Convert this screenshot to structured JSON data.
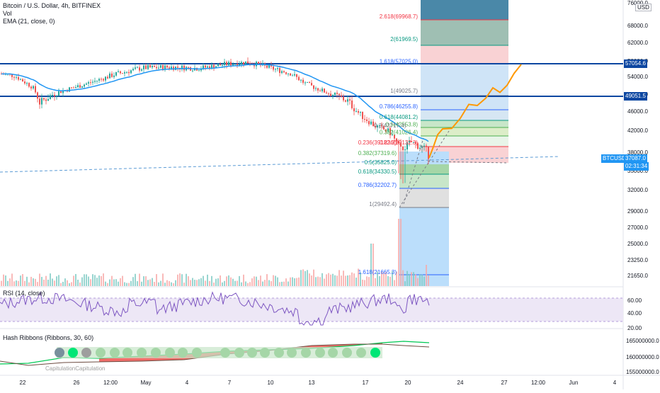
{
  "header": {
    "symbol_line": "Bitcoin / U.S. Dollar, 4h, BITFINEX",
    "vol_label": "Vol",
    "ema_label": "EMA (21, close, 0)"
  },
  "price_axis": {
    "currency": "USD",
    "ticks": [
      "76000.0",
      "68000.0",
      "62000.0",
      "58000.0",
      "54000.0",
      "49000.0",
      "46000.0",
      "42000.0",
      "38000.0",
      "35000.0",
      "32000.0",
      "29000.0",
      "27000.0",
      "25000.0",
      "23250.0",
      "21650.0"
    ],
    "resistance_1": "57054.6",
    "resistance_2": "49051.5",
    "current_symbol": "BTCUSD",
    "current_price": "37087.0",
    "countdown": "02:31:34"
  },
  "fib_extension": [
    {
      "label": "2.618(69968.7)",
      "price": 69968.7,
      "color": "#f23645"
    },
    {
      "label": "2(61969.5)",
      "price": 61969.5,
      "color": "#089981"
    },
    {
      "label": "1.618(57025.0)",
      "price": 57025.0,
      "color": "#2962ff"
    },
    {
      "label": "1(49025.7)",
      "price": 49025.7,
      "color": "#787b86"
    },
    {
      "label": "0.786(46255.8)",
      "price": 46255.8,
      "color": "#2962ff"
    },
    {
      "label": "0.618(44081.2)",
      "price": 44081.2,
      "color": "#089981"
    },
    {
      "label": "0.5(42553.8)",
      "price": 42553.8,
      "color": "#4caf50"
    },
    {
      "label": "0.382(41026.4)",
      "price": 41026.4,
      "color": "#4caf50"
    },
    {
      "label": "0.236(39132.3)",
      "price": 39132.3,
      "color": "#f23645"
    }
  ],
  "fib_retracement": [
    {
      "label": "0.236(39182.3)",
      "price": 39182.3,
      "color": "#f23645"
    },
    {
      "label": "0.382(37319.6)",
      "price": 37319.6,
      "color": "#4caf50"
    },
    {
      "label": "0.5(35825.0)",
      "price": 35825.0,
      "color": "#089981"
    },
    {
      "label": "0.618(34330.5)",
      "price": 34330.5,
      "color": "#089981"
    },
    {
      "label": "0.786(32202.7)",
      "price": 32202.7,
      "color": "#2962ff"
    },
    {
      "label": "1(29492.4)",
      "price": 29492.4,
      "color": "#787b86"
    },
    {
      "label": "1.618(21665.3)",
      "price": 21665.3,
      "color": "#2962ff"
    }
  ],
  "fib_overlap_text": "0.2(42717.4)",
  "rsi": {
    "label": "RSI (14, close)",
    "ticks": [
      "60.00",
      "40.00",
      "20.00"
    ]
  },
  "hash_ribbons": {
    "label": "Hash Ribbons (Ribbons, 30, 60)",
    "capitulation_text": "CapitulationCapitulation",
    "ticks": [
      "165000000.0",
      "160000000.0",
      "155000000.0"
    ]
  },
  "time_axis": {
    "ticks": [
      "22",
      "26",
      "12:00",
      "May",
      "4",
      "7",
      "10",
      "13",
      "17",
      "20",
      "24",
      "27",
      "12:00",
      "Jun",
      "4"
    ]
  },
  "colors": {
    "up": "#26a69a",
    "down": "#ef5350",
    "ema": "#2196f3",
    "level_line": "#0d47a1",
    "projection": "#ff9800",
    "rsi": "#7e57c2"
  }
}
